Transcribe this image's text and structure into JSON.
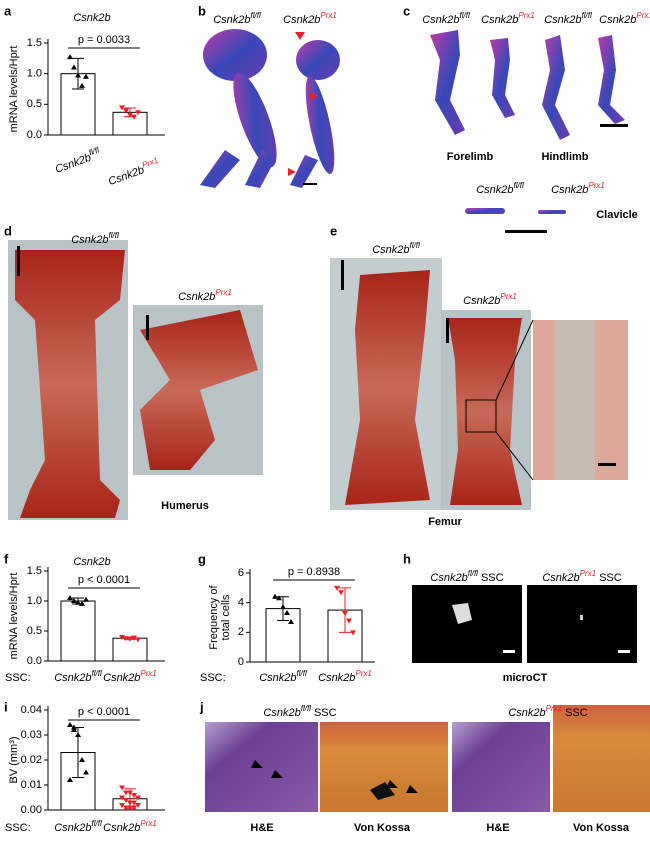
{
  "chart_data": [
    {
      "type": "bar",
      "title": "Csnk2b",
      "ylabel": "mRNA levels/Hprt",
      "categories": [
        "Csnk2b",
        "Csnk2b"
      ],
      "category_superscripts": [
        "fl/fl",
        "Prx1"
      ],
      "values": [
        1.0,
        0.37
      ],
      "errors": [
        0.25,
        0.07
      ],
      "points": [
        [
          1.27,
          1.1,
          0.97,
          0.8,
          0.95
        ],
        [
          0.45,
          0.4,
          0.33,
          0.3,
          0.37
        ]
      ],
      "colors": [
        "#000000",
        "#e8202a"
      ],
      "ylim": [
        0,
        1.5
      ],
      "yticks": [
        {
          "value": 0,
          "label": "0.0"
        },
        0.5,
        {
          "value": 1,
          "label": "1.0"
        },
        1.5
      ],
      "annotation": "p = 0.0033"
    },
    {
      "type": "bar",
      "title": "Csnk2b",
      "ylabel": "mRNA levels/Hprt",
      "category_prefix": "SSC:",
      "categories": [
        "Csnk2b",
        "Csnk2b"
      ],
      "category_superscripts": [
        "fl/fl",
        "Prx1"
      ],
      "values": [
        1.0,
        0.38
      ],
      "errors": [
        0.05,
        0.02
      ],
      "points": [
        [
          1.05,
          1.0,
          0.97,
          0.95,
          1.02
        ],
        [
          0.4,
          0.38,
          0.37,
          0.39,
          0.36
        ]
      ],
      "colors": [
        "#000000",
        "#e8202a"
      ],
      "ylim": [
        0,
        1.5
      ],
      "yticks": [
        {
          "value": 0,
          "label": "0.0"
        },
        0.5,
        {
          "value": 1,
          "label": "1.0"
        },
        1.5
      ],
      "annotation": "p < 0.0001"
    },
    {
      "type": "bar",
      "ylabel": [
        "Frequency of",
        "total cells"
      ],
      "category_prefix": "SSC:",
      "categories": [
        "Csnk2b",
        "Csnk2b"
      ],
      "category_superscripts": [
        "fl/fl",
        "Prx1"
      ],
      "values": [
        3.6,
        3.5
      ],
      "errors": [
        0.8,
        1.5
      ],
      "points": [
        [
          4.4,
          4.3,
          3.7,
          3.3,
          2.7
        ],
        [
          5.0,
          4.7,
          3.3,
          2.8,
          2.0
        ]
      ],
      "colors": [
        "#000000",
        "#e8202a"
      ],
      "ylim": [
        0,
        6
      ],
      "yticks": [
        0,
        2,
        4,
        6
      ],
      "annotation": "p = 0.8938"
    },
    {
      "type": "bar",
      "ylabel": "BV (mm³)",
      "category_prefix": "SSC:",
      "categories": [
        "Csnk2b",
        "Csnk2b"
      ],
      "category_superscripts": [
        "fl/fl",
        "Prx1"
      ],
      "values": [
        0.023,
        0.0045
      ],
      "errors": [
        0.01,
        0.004
      ],
      "points": [
        [
          0.034,
          0.033,
          0.03,
          0.02,
          0.015,
          0.012,
          0.032
        ],
        [
          0.009,
          0.007,
          0.007,
          0.006,
          0.005,
          0.005,
          0.004,
          0.003,
          0.003,
          0.002,
          0.002,
          0.001,
          0.001,
          0.001
        ]
      ],
      "colors": [
        "#000000",
        "#e8202a"
      ],
      "ylim": [
        0,
        0.04
      ],
      "yticks": [
        {
          "value": 0,
          "label": "0.00"
        },
        0.01,
        0.02,
        0.03,
        0.04
      ],
      "annotation": "p < 0.0001"
    }
  ],
  "figure": {
    "panels": [
      "a",
      "b",
      "c",
      "d",
      "e",
      "f",
      "g",
      "h",
      "i",
      "j"
    ],
    "labels": [
      {
        "text": "Csnk2b",
        "sup": "fl/fl"
      },
      {
        "text": "Csnk2b",
        "sup": "Prx1",
        "color": "#e8202a"
      },
      {
        "text": "Csnk2b",
        "sup": "fl/fl"
      },
      {
        "text": "Csnk2b",
        "sup": "Prx1",
        "color": "#e8202a"
      },
      {
        "text": "Csnk2b",
        "sup": "fl/fl"
      },
      {
        "text": "Csnk2b",
        "sup": "Prx1",
        "color": "#e8202a"
      },
      {
        "text": "Csnk2b",
        "sup": "fl/fl"
      },
      {
        "text": "Csnk2b",
        "sup": "Prx1",
        "color": "#e8202a"
      },
      {
        "text": "Csnk2b",
        "sup": "fl/fl"
      },
      {
        "text": "Csnk2b",
        "sup": "Prx1",
        "color": "#e8202a"
      },
      {
        "text": "Csnk2b",
        "sup": "fl/fl"
      },
      {
        "text": "Csnk2b",
        "sup": "Prx1",
        "color": "#e8202a"
      },
      {
        "text": "Csnk2b",
        "sup": "fl/fl",
        "suffix": "SSC"
      },
      {
        "text": "Csnk2b",
        "sup": "Prx1",
        "suffix": "SSC",
        "color": "#e8202a"
      },
      {
        "text": "Csnk2b",
        "sup": "fl/fl",
        "suffix": "SSC"
      },
      {
        "text": "Csnk2b",
        "sup": "Prx1",
        "suffix": "SSC",
        "color": "#e8202a"
      }
    ],
    "captions": [
      "Forelimb",
      "Hindlimb",
      "Clavicle",
      "Humerus",
      "Femur",
      "microCT",
      "H&E",
      "Von Kossa",
      "H&E",
      "Von Kossa"
    ]
  }
}
